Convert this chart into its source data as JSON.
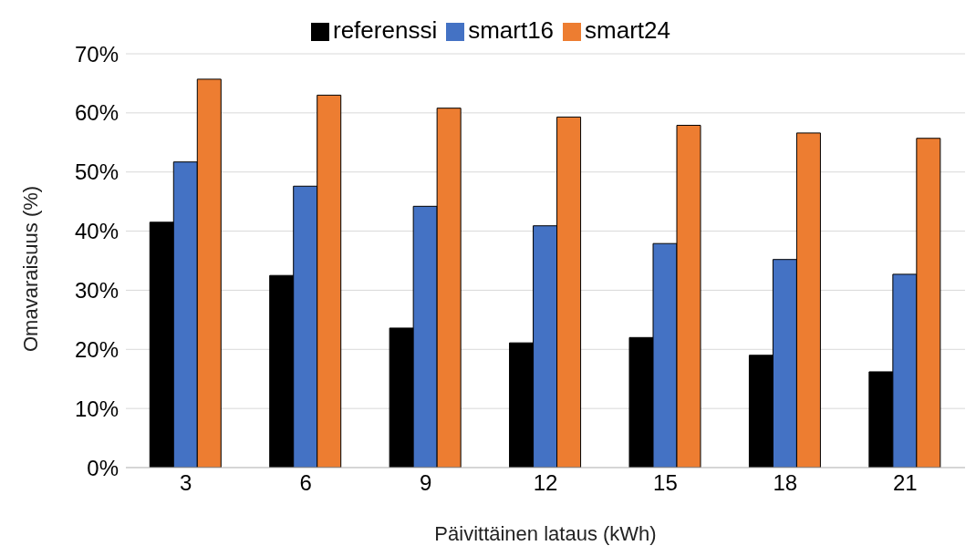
{
  "chart_data": {
    "type": "bar",
    "xlabel": "Päivittäinen lataus (kWh)",
    "ylabel": "Omavaraisuus (%)",
    "categories": [
      "3",
      "6",
      "9",
      "12",
      "15",
      "18",
      "21"
    ],
    "series": [
      {
        "name": "referenssi",
        "color": "#000000",
        "values": [
          41.5,
          32.5,
          23.6,
          21.1,
          22.0,
          19.0,
          16.2
        ]
      },
      {
        "name": "smart16",
        "color": "#4472c4",
        "values": [
          51.7,
          47.6,
          44.2,
          40.9,
          37.9,
          35.2,
          32.7
        ]
      },
      {
        "name": "smart24",
        "color": "#ed7d31",
        "values": [
          65.7,
          63.0,
          60.8,
          59.3,
          57.9,
          56.6,
          55.7
        ]
      }
    ],
    "ylim": [
      0,
      70
    ],
    "yticks": [
      {
        "value": 0,
        "label": "0%"
      },
      {
        "value": 10,
        "label": "10%"
      },
      {
        "value": 20,
        "label": "20%"
      },
      {
        "value": 30,
        "label": "30%"
      },
      {
        "value": 40,
        "label": "40%"
      },
      {
        "value": 50,
        "label": "50%"
      },
      {
        "value": 60,
        "label": "60%"
      },
      {
        "value": 70,
        "label": "70%"
      }
    ],
    "grid": "y",
    "legend": "top"
  }
}
